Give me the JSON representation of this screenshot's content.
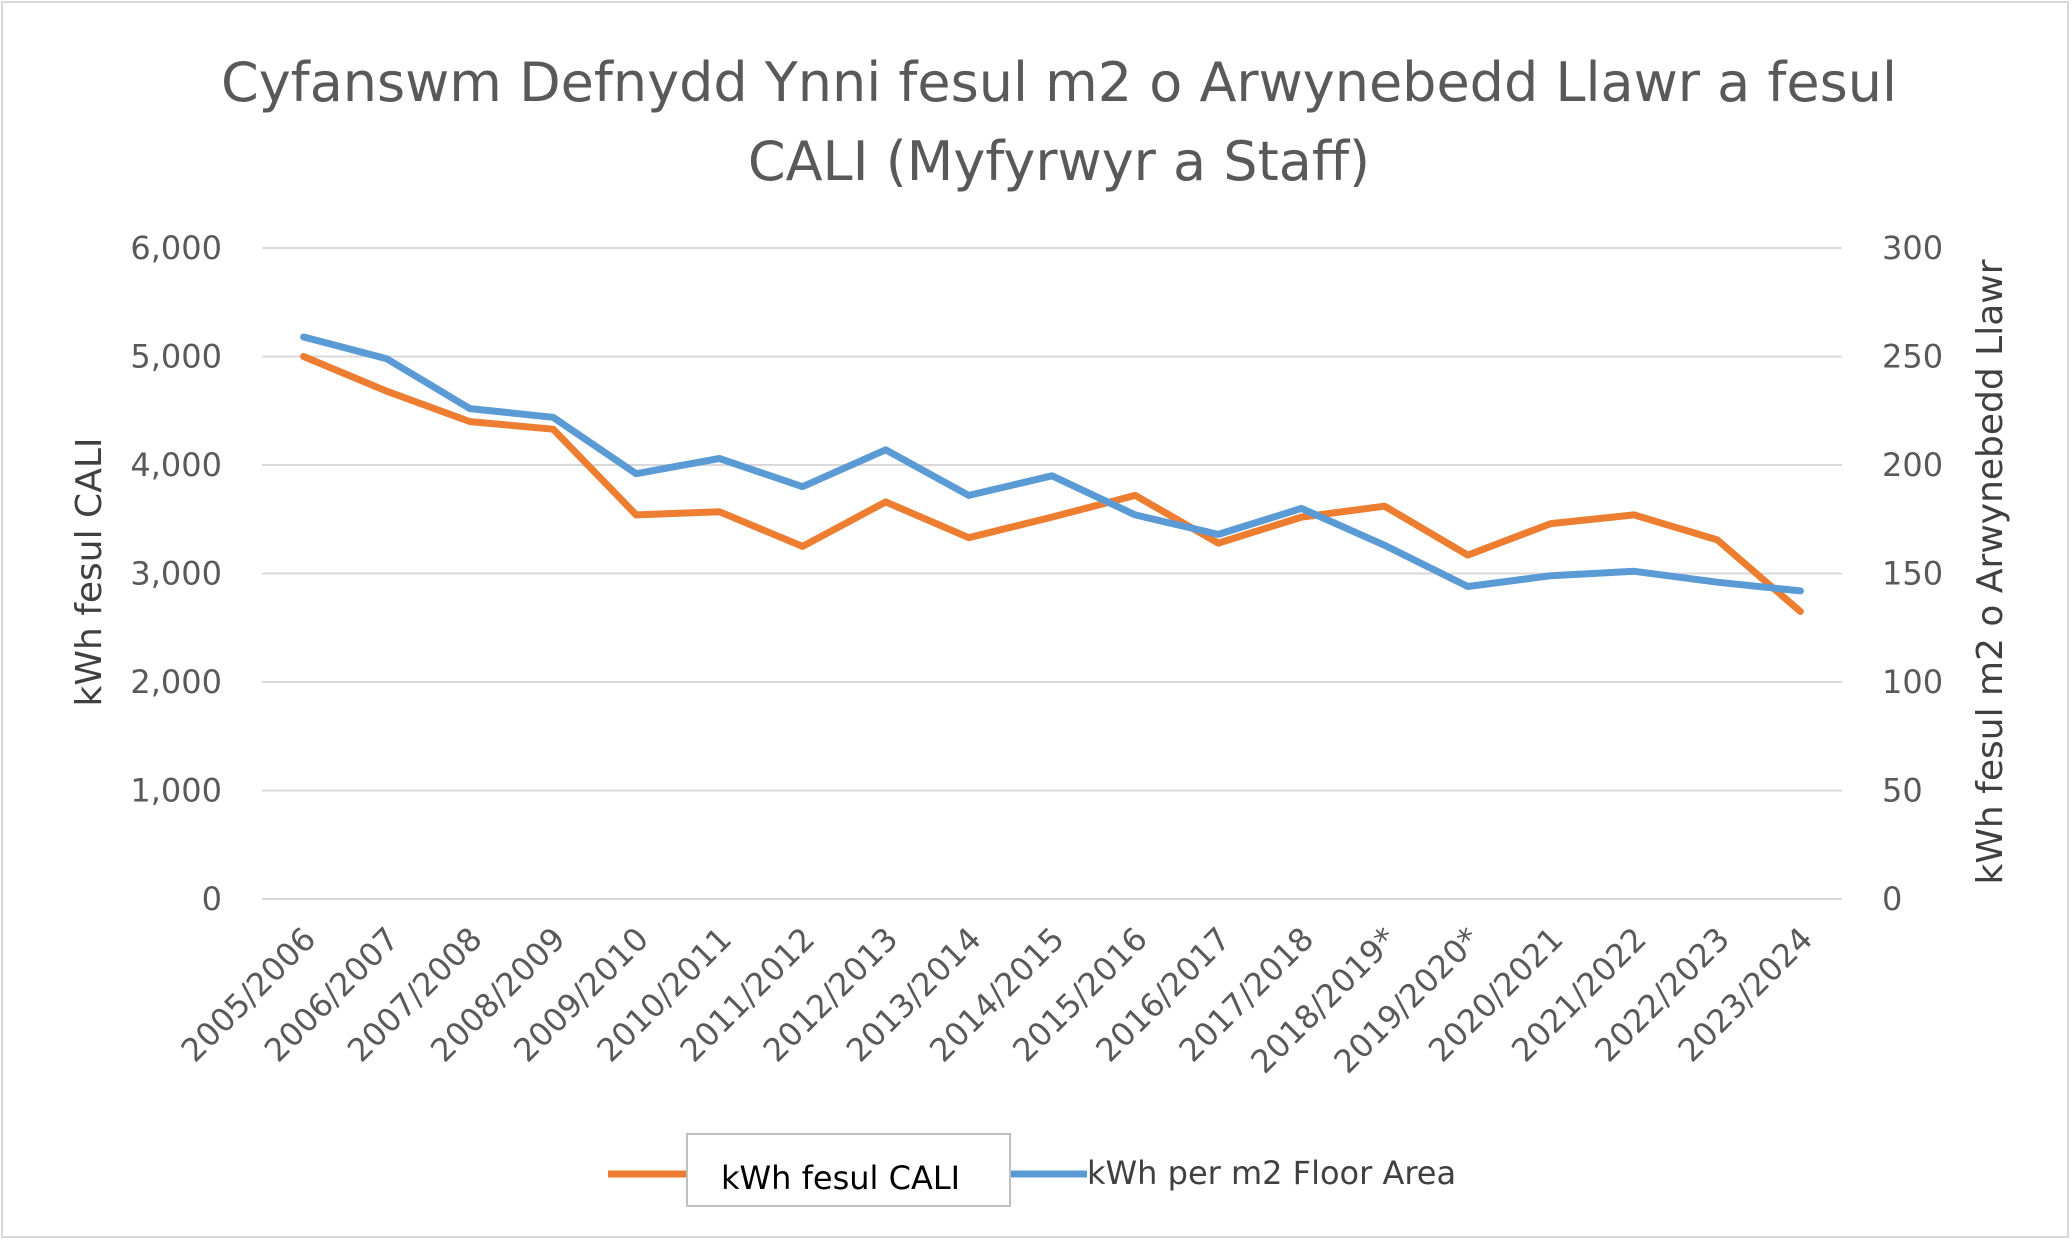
{
  "chart_data": {
    "type": "line",
    "title": "Cyfanswm Defnydd Ynni fesul m2 o Arwynebedd Llawr a fesul CALI (Myfyrwyr a Staff)",
    "title_lines": [
      "Cyfanswm Defnydd Ynni fesul m2 o Arwynebedd Llawr a fesul",
      "CALI (Myfyrwyr a Staff)"
    ],
    "ylabel": "kWh fesul CALI",
    "y2label": "kWh  fesul m2 o Arwynebedd Llawr",
    "ylim": [
      0,
      6000
    ],
    "y2lim": [
      0,
      300
    ],
    "yticks": [
      "0",
      "1,000",
      "2,000",
      "3,000",
      "4,000",
      "5,000",
      "6,000"
    ],
    "y2ticks": [
      "0",
      "50",
      "100",
      "150",
      "200",
      "250",
      "300"
    ],
    "grid": true,
    "legend_position": "bottom",
    "categories": [
      "2005/2006",
      "2006/2007",
      "2007/2008",
      "2008/2009",
      "2009/2010",
      "2010/2011",
      "2011/2012",
      "2012/2013",
      "2013/2014",
      "2014/2015",
      "2015/2016",
      "2016/2017",
      "2017/2018",
      "2018/2019*",
      "2019/2020*",
      "2020/2021",
      "2021/2022",
      "2022/2023",
      "2023/2024"
    ],
    "series": [
      {
        "name": "kWh fesul CALI",
        "axis": "left",
        "color": "#ed7d31",
        "values": [
          5000,
          4680,
          4400,
          4330,
          3540,
          3570,
          3250,
          3660,
          3330,
          3520,
          3720,
          3280,
          3520,
          3620,
          3170,
          3460,
          3540,
          3310,
          2650
        ]
      },
      {
        "name": "kWh per m2 Floor Area",
        "axis": "right",
        "color": "#5b9bd5",
        "values": [
          259,
          249,
          226,
          222,
          196,
          203,
          190,
          207,
          186,
          195,
          177,
          168,
          180,
          163,
          144,
          149,
          151,
          146,
          142
        ]
      }
    ]
  }
}
